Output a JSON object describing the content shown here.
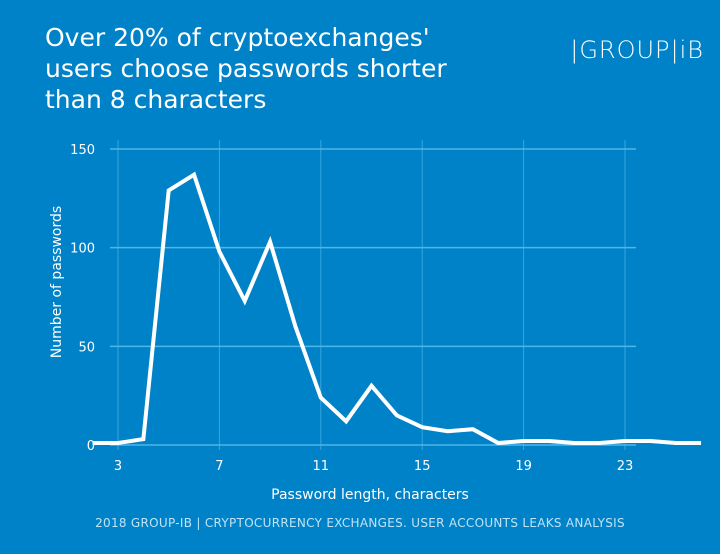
{
  "header": {
    "title": "Over 20% of cryptoexchanges' users choose passwords shorter than 8 characters",
    "logo_text": "|GROUP|iB"
  },
  "footer": "2018 GROUP-IB  |  CRYPTOCURRENCY EXCHANGES. USER ACCOUNTS LEAKS ANALYSIS",
  "colors": {
    "background": "#0082c8",
    "grid": "#4fb6e8",
    "line": "#ffffff"
  },
  "chart_data": {
    "type": "line",
    "xlabel": "Password length, characters",
    "ylabel": "Number of passwords",
    "xlim": [
      2,
      26
    ],
    "ylim": [
      0,
      150
    ],
    "xticks": [
      3,
      7,
      11,
      15,
      19,
      23
    ],
    "yticks": [
      0,
      50,
      100,
      150
    ],
    "grid": true,
    "x": [
      2,
      3,
      4,
      5,
      6,
      7,
      8,
      9,
      10,
      11,
      12,
      13,
      14,
      15,
      16,
      17,
      18,
      19,
      20,
      21,
      22,
      23,
      24,
      25,
      26
    ],
    "values": [
      1,
      1,
      3,
      129,
      137,
      98,
      73,
      103,
      60,
      24,
      12,
      30,
      15,
      9,
      7,
      8,
      1,
      2,
      2,
      1,
      1,
      2,
      2,
      1,
      1
    ]
  }
}
